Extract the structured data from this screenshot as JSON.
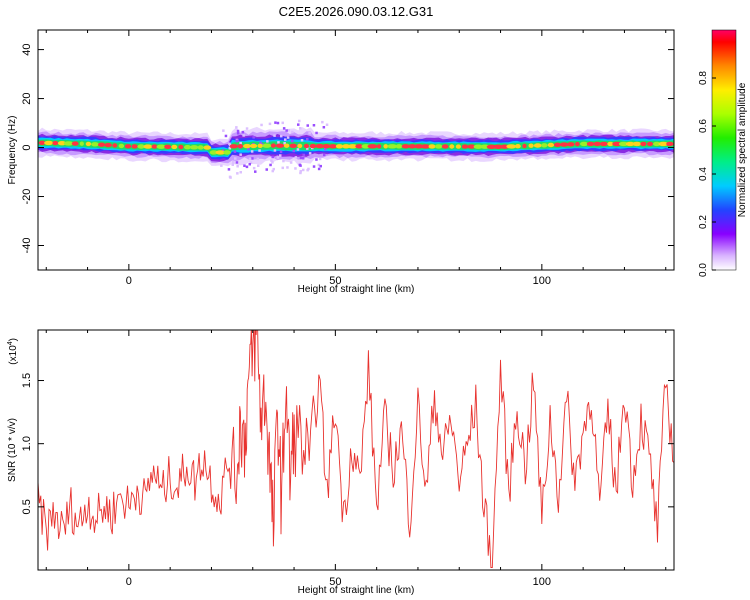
{
  "title": "C2E5.2026.090.03.12.G31",
  "chart_data": [
    {
      "type": "heatmap",
      "xlabel": "Height of straight line (km)",
      "ylabel": "Frequency (Hz)",
      "xlim": [
        -22,
        132
      ],
      "ylim": [
        -50,
        48
      ],
      "xticks": [
        0,
        50,
        100
      ],
      "xtick_labels": [
        "0",
        "50",
        "100"
      ],
      "yticks": [
        40,
        20,
        0,
        -20,
        -40
      ],
      "ytick_labels": [
        "40",
        "20",
        "0",
        "-20",
        "-40"
      ],
      "ridge": {
        "x": [
          -22,
          -10,
          0,
          10,
          19,
          20,
          24,
          25,
          35,
          50,
          70,
          90,
          110,
          132
        ],
        "freq": [
          2,
          1.5,
          0.5,
          0.3,
          0,
          -2,
          -2,
          0.5,
          0.8,
          0.5,
          0.5,
          0.3,
          1.5,
          1.5
        ]
      },
      "colorbar": {
        "label": "Normalized spectral amplitude",
        "range": [
          0,
          1
        ],
        "ticks": [
          0.0,
          0.2,
          0.4,
          0.6,
          0.8
        ],
        "tick_labels": [
          "0.0",
          "0.2",
          "0.4",
          "0.6",
          "0.8"
        ]
      }
    },
    {
      "type": "line",
      "xlabel": "Height of straight line (km)",
      "ylabel": "SNR (10 * v/v)",
      "scale_note": "(x10",
      "scale_exp": "4",
      "xlim": [
        -22,
        132
      ],
      "ylim": [
        0.0,
        1.9
      ],
      "xticks": [
        0,
        50,
        100
      ],
      "xtick_labels": [
        "0",
        "50",
        "100"
      ],
      "yticks": [
        0.5,
        1.0,
        1.5
      ],
      "ytick_labels": [
        "0.5",
        "1.0",
        "1.5"
      ],
      "color": "#e8322e",
      "series": [
        {
          "x": [
            -22,
            -20,
            -18,
            -16,
            -14,
            -12,
            -10,
            -8,
            -6,
            -4,
            -2,
            0,
            2,
            4,
            6,
            8,
            10,
            12,
            14,
            16,
            18,
            20,
            22,
            24,
            26,
            27,
            28,
            29,
            30,
            31,
            32,
            33,
            34,
            35,
            36,
            37,
            38,
            39,
            40,
            42,
            44,
            46,
            48,
            50,
            52,
            54,
            56,
            58,
            60,
            62,
            64,
            66,
            68,
            70,
            72,
            74,
            76,
            78,
            80,
            82,
            84,
            86,
            88,
            90,
            92,
            94,
            96,
            98,
            100,
            102,
            104,
            106,
            108,
            110,
            112,
            114,
            116,
            118,
            120,
            122,
            124,
            126,
            128,
            130,
            132
          ],
          "y": [
            0.55,
            0.3,
            0.45,
            0.3,
            0.5,
            0.35,
            0.55,
            0.4,
            0.5,
            0.45,
            0.6,
            0.5,
            0.65,
            0.55,
            0.8,
            0.6,
            0.75,
            0.65,
            0.85,
            0.7,
            0.9,
            0.7,
            0.55,
            0.85,
            0.75,
            1.2,
            1.0,
            1.5,
            1.7,
            1.9,
            1.2,
            1.4,
            0.9,
            0.3,
            1.3,
            0.5,
            1.5,
            0.7,
            1.1,
            1.0,
            0.8,
            1.55,
            0.6,
            1.3,
            0.4,
            1.0,
            0.7,
            1.6,
            0.5,
            1.2,
            0.8,
            1.1,
            0.4,
            1.3,
            0.6,
            1.4,
            0.9,
            1.2,
            0.7,
            1.0,
            1.3,
            0.5,
            0.05,
            1.6,
            0.6,
            1.3,
            0.8,
            1.5,
            0.4,
            1.2,
            0.6,
            1.35,
            0.7,
            1.1,
            1.4,
            0.5,
            1.25,
            0.6,
            1.45,
            0.7,
            1.2,
            0.9,
            0.3,
            1.5,
            0.85
          ]
        }
      ]
    }
  ]
}
